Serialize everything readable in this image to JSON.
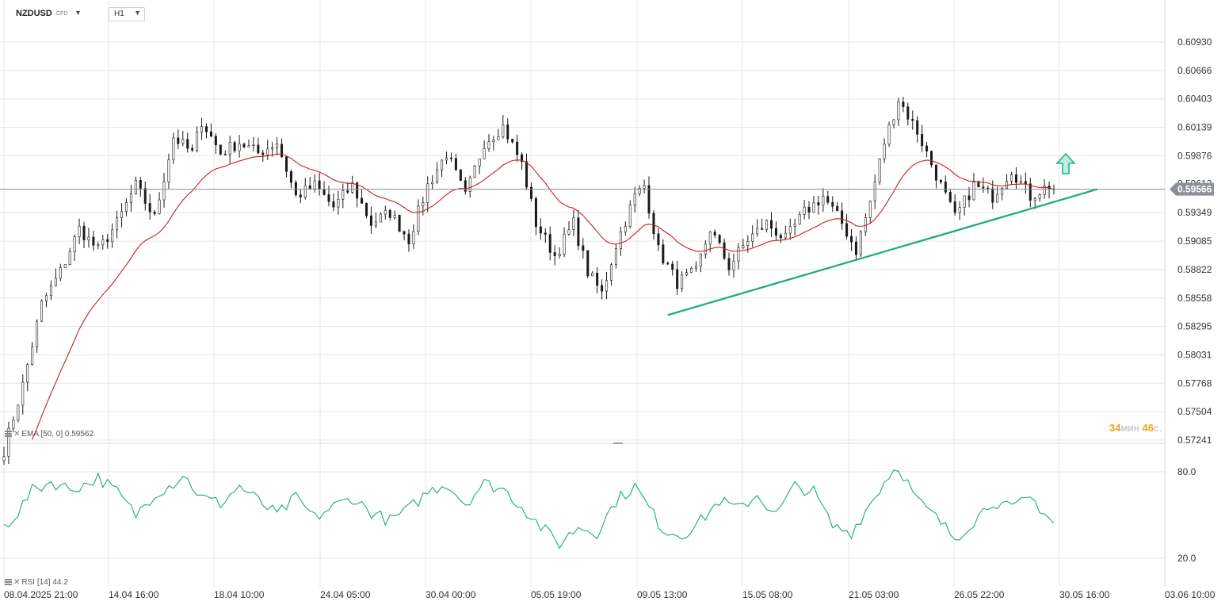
{
  "header": {
    "symbol": "NZDUSD",
    "symbol_type": "CFD",
    "timeframe": "H1",
    "symbol_dropdown_icon": "caret-down-icon",
    "timeframe_dropdown_icon": "caret-down-icon"
  },
  "indicators": {
    "ema_label": "EMA",
    "ema_params": "[50, 0]",
    "ema_value": "0.59562",
    "rsi_label": "RSI",
    "rsi_params": "[14]",
    "rsi_value": "44.2",
    "settings_icon": "menu-lines-icon",
    "remove_icon": "close-x-icon"
  },
  "timer": {
    "minutes": "34",
    "minutes_unit": "мин",
    "seconds": "46",
    "seconds_unit": "с."
  },
  "colors": {
    "candle": "#1a1a1a",
    "ema": "#c0202a",
    "trendline": "#1aab7a",
    "rsi": "#1aab7a",
    "price_tag": "#8c9197",
    "grid": "#e3e6e8",
    "arrow": "#22b08a",
    "timer_number": "#f0a020"
  },
  "chart_data": [
    {
      "type": "candlestick",
      "symbol": "NZDUSD",
      "timeframe": "H1",
      "last_price": 0.59566,
      "y_ticks": [
        0.6093,
        0.60666,
        0.60403,
        0.60139,
        0.59876,
        0.59349,
        0.59085,
        0.58822,
        0.58558,
        0.58295,
        0.58031,
        0.57768,
        0.57504,
        0.57241
      ],
      "y_tick_labels": [
        "0.60930",
        "0.60666",
        "0.60403",
        "0.60139",
        "0.59876",
        "0.59349",
        "0.59085",
        "0.58822",
        "0.58558",
        "0.58295",
        "0.58031",
        "0.57768",
        "0.57504",
        "0.57241"
      ],
      "partially_hidden_tick": "0.59612",
      "ylim": [
        0.5718,
        0.611
      ],
      "x_tick_labels": [
        "08.04.2025  21:00",
        "14.04  16:00",
        "18.04  10:00",
        "24.04  05:00",
        "30.04  00:00",
        "05.05  19:00",
        "09.05  13:00",
        "15.05  08:00",
        "21.05  03:00",
        "26.05  22:00",
        "30.05  16:00",
        "03.06  10:00"
      ],
      "price_path": [
        [
          0,
          0.5715
        ],
        [
          4,
          0.5775
        ],
        [
          8,
          0.585
        ],
        [
          12,
          0.588
        ],
        [
          16,
          0.592
        ],
        [
          20,
          0.59
        ],
        [
          24,
          0.5925
        ],
        [
          28,
          0.596
        ],
        [
          32,
          0.593
        ],
        [
          36,
          0.6005
        ],
        [
          40,
          0.599
        ],
        [
          42,
          0.602
        ],
        [
          46,
          0.599
        ],
        [
          50,
          0.6
        ],
        [
          54,
          0.599
        ],
        [
          58,
          0.6
        ],
        [
          62,
          0.595
        ],
        [
          66,
          0.596
        ],
        [
          70,
          0.594
        ],
        [
          74,
          0.596
        ],
        [
          78,
          0.5925
        ],
        [
          82,
          0.5935
        ],
        [
          86,
          0.591
        ],
        [
          90,
          0.596
        ],
        [
          94,
          0.599
        ],
        [
          98,
          0.595
        ],
        [
          102,
          0.6
        ],
        [
          106,
          0.6015
        ],
        [
          110,
          0.598
        ],
        [
          113,
          0.5925
        ],
        [
          117,
          0.5895
        ],
        [
          121,
          0.5925
        ],
        [
          124,
          0.588
        ],
        [
          127,
          0.586
        ],
        [
          130,
          0.5905
        ],
        [
          134,
          0.595
        ],
        [
          136,
          0.596
        ],
        [
          139,
          0.59
        ],
        [
          143,
          0.587
        ],
        [
          147,
          0.588
        ],
        [
          150,
          0.592
        ],
        [
          154,
          0.5885
        ],
        [
          158,
          0.591
        ],
        [
          162,
          0.5925
        ],
        [
          166,
          0.591
        ],
        [
          170,
          0.5935
        ],
        [
          174,
          0.595
        ],
        [
          178,
          0.5925
        ],
        [
          181,
          0.59
        ],
        [
          184,
          0.5945
        ],
        [
          187,
          0.6
        ],
        [
          190,
          0.604
        ],
        [
          194,
          0.601
        ],
        [
          198,
          0.597
        ],
        [
          202,
          0.593
        ],
        [
          206,
          0.596
        ],
        [
          210,
          0.595
        ],
        [
          214,
          0.5975
        ],
        [
          218,
          0.595
        ],
        [
          222,
          0.596
        ]
      ],
      "series": [
        {
          "name": "EMA [50, 0]",
          "type": "line",
          "last_value": 0.59562
        }
      ],
      "annotations": [
        {
          "type": "trendline",
          "from": [
            141,
            0.584
          ],
          "to": [
            223,
            0.595
          ]
        },
        {
          "type": "arrow",
          "direction": "up"
        }
      ],
      "grid": true
    },
    {
      "type": "line",
      "name": "RSI [14]",
      "last_value": 44.2,
      "y_tick_labels": [
        "80.0",
        "20.0"
      ],
      "ylim": [
        10,
        88
      ],
      "key_points": [
        [
          0,
          42
        ],
        [
          3,
          52
        ],
        [
          6,
          67
        ],
        [
          10,
          73
        ],
        [
          14,
          68
        ],
        [
          18,
          72
        ],
        [
          20,
          76
        ],
        [
          24,
          66
        ],
        [
          28,
          50
        ],
        [
          32,
          65
        ],
        [
          36,
          72
        ],
        [
          38,
          78
        ],
        [
          42,
          62
        ],
        [
          46,
          58
        ],
        [
          50,
          70
        ],
        [
          54,
          60
        ],
        [
          58,
          50
        ],
        [
          62,
          62
        ],
        [
          66,
          48
        ],
        [
          70,
          56
        ],
        [
          74,
          62
        ],
        [
          78,
          52
        ],
        [
          82,
          46
        ],
        [
          86,
          54
        ],
        [
          90,
          66
        ],
        [
          94,
          72
        ],
        [
          98,
          58
        ],
        [
          102,
          72
        ],
        [
          106,
          68
        ],
        [
          110,
          56
        ],
        [
          114,
          42
        ],
        [
          118,
          30
        ],
        [
          122,
          42
        ],
        [
          126,
          38
        ],
        [
          130,
          60
        ],
        [
          134,
          70
        ],
        [
          136,
          60
        ],
        [
          140,
          40
        ],
        [
          144,
          36
        ],
        [
          148,
          46
        ],
        [
          152,
          60
        ],
        [
          156,
          54
        ],
        [
          160,
          64
        ],
        [
          164,
          50
        ],
        [
          168,
          70
        ],
        [
          172,
          66
        ],
        [
          176,
          42
        ],
        [
          180,
          38
        ],
        [
          184,
          58
        ],
        [
          188,
          78
        ],
        [
          190,
          84
        ],
        [
          194,
          60
        ],
        [
          198,
          48
        ],
        [
          202,
          34
        ],
        [
          206,
          46
        ],
        [
          210,
          60
        ],
        [
          214,
          54
        ],
        [
          218,
          62
        ],
        [
          221,
          52
        ],
        [
          223,
          44.2
        ]
      ],
      "grid": true
    }
  ]
}
